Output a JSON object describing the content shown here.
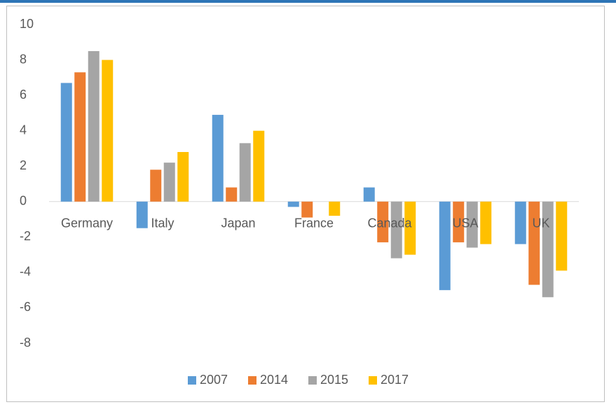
{
  "chart_data": {
    "type": "bar",
    "categories": [
      "Germany",
      "Italy",
      "Japan",
      "France",
      "Canada",
      "USA",
      "UK"
    ],
    "series": [
      {
        "name": "2007",
        "color": "#5b9bd5",
        "values": [
          6.7,
          -1.5,
          4.9,
          -0.3,
          0.8,
          -5.0,
          -2.4
        ]
      },
      {
        "name": "2014",
        "color": "#ed7d31",
        "values": [
          7.3,
          1.8,
          0.8,
          -0.9,
          -2.3,
          -2.3,
          -4.7
        ]
      },
      {
        "name": "2015",
        "color": "#a5a5a5",
        "values": [
          8.5,
          2.2,
          3.3,
          0,
          -3.2,
          -2.6,
          -5.4
        ]
      },
      {
        "name": "2017",
        "color": "#ffc000",
        "values": [
          8.0,
          2.8,
          4.0,
          -0.8,
          -3.0,
          -2.4,
          -3.9
        ]
      }
    ],
    "ylim": [
      -8,
      10
    ],
    "yticks": [
      -8,
      -6,
      -4,
      -2,
      0,
      2,
      4,
      6,
      8,
      10
    ],
    "grid": false,
    "legend": "bottom"
  }
}
